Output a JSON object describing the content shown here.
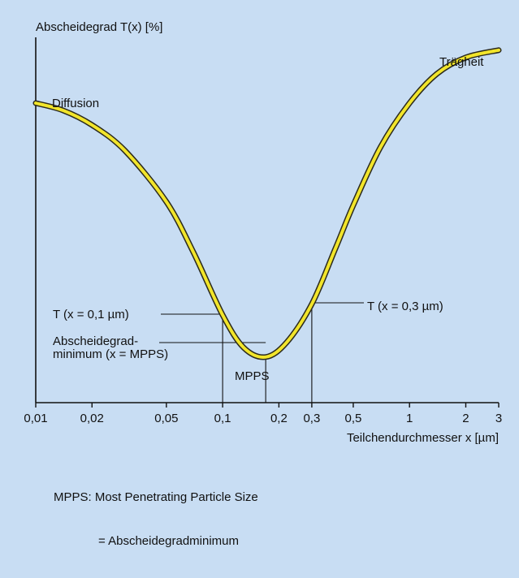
{
  "colors": {
    "background": "#c8ddf3",
    "axis": "#111111",
    "curve_fill": "#f2e52b",
    "curve_outline": "#2b2a1e",
    "guide_lines": "#111111"
  },
  "chart_data": {
    "type": "line",
    "title": "",
    "ylabel": "Abscheidegrad T(x) [%]",
    "xlabel": "Teilchendurchmesser x [µm]",
    "x_scale": "log",
    "xlim": [
      0.01,
      3
    ],
    "ylim": [
      0,
      100
    ],
    "grid": false,
    "x_ticks": [
      {
        "value": 0.01,
        "label": "0,01"
      },
      {
        "value": 0.02,
        "label": "0,02"
      },
      {
        "value": 0.05,
        "label": "0,05"
      },
      {
        "value": 0.1,
        "label": "0,1"
      },
      {
        "value": 0.2,
        "label": "0,2"
      },
      {
        "value": 0.3,
        "label": "0,3"
      },
      {
        "value": 0.5,
        "label": "0,5"
      },
      {
        "value": 1,
        "label": "1"
      },
      {
        "value": 2,
        "label": "2"
      },
      {
        "value": 3,
        "label": "3"
      }
    ],
    "series": [
      {
        "x": [
          0.01,
          0.014,
          0.02,
          0.03,
          0.05,
          0.07,
          0.1,
          0.13,
          0.17,
          0.22,
          0.3,
          0.4,
          0.5,
          0.7,
          1,
          1.4,
          2,
          3
        ],
        "y": [
          82,
          80,
          76,
          69,
          55,
          41,
          24,
          15,
          12.5,
          16.5,
          27,
          42,
          54,
          70,
          82,
          90,
          94.5,
          96.5
        ]
      }
    ],
    "annotations": {
      "diffusion": "Diffusion",
      "traegheit": "Trägheit",
      "t_01": "T (x = 0,1 µm)",
      "t_03": "T (x = 0,3 µm)",
      "minimum_line1": "Abscheidegrad-",
      "minimum_line2": "minimum (x = MPPS)",
      "mpps": "MPPS"
    }
  },
  "footnote": {
    "line1": "MPPS: Most Penetrating Particle Size",
    "line2": "= Abscheidegradminimum"
  }
}
